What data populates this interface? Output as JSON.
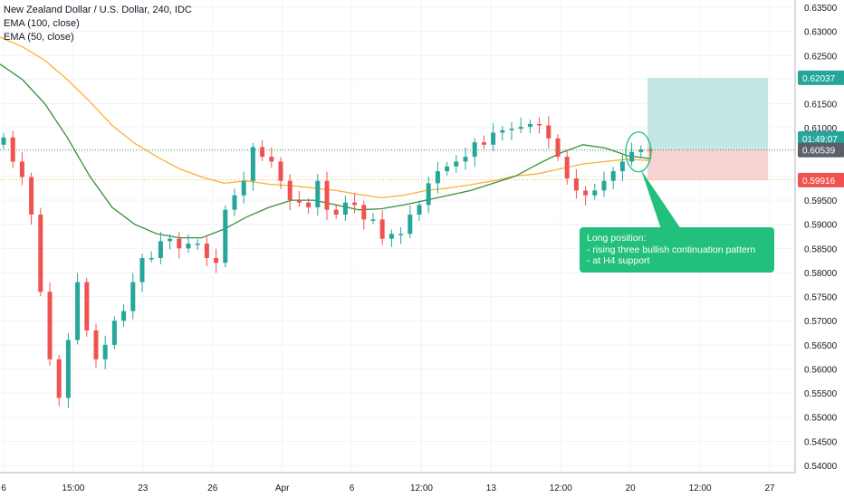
{
  "legend": {
    "symbol": "New Zealand Dollar / U.S. Dollar, 240, IDC",
    "ema100": "EMA (100, close)",
    "ema50": "EMA (50, close)"
  },
  "price_axis": {
    "ticks": [
      "0.63500",
      "0.63000",
      "0.62500",
      "0.62000",
      "0.61500",
      "0.61000",
      "0.60500",
      "0.60000",
      "0.59500",
      "0.59000",
      "0.58500",
      "0.58000",
      "0.57500",
      "0.57000",
      "0.56500",
      "0.56000",
      "0.55500",
      "0.55000",
      "0.54500",
      "0.54000"
    ],
    "badges": [
      {
        "text": "0.62037",
        "price": 0.62037,
        "color": "#26a69a"
      },
      {
        "text": "01:49:07",
        "price": 0.6078,
        "color": "#26a69a"
      },
      {
        "text": "0.60539",
        "price": 0.60539,
        "color": "#5d606b"
      },
      {
        "text": "0.59916",
        "price": 0.59916,
        "color": "#ef5350"
      }
    ]
  },
  "time_axis": {
    "labels": [
      "6",
      "15:00",
      "23",
      "26",
      "Apr",
      "6",
      "12:00",
      "13",
      "12:00",
      "20",
      "12:00",
      "27"
    ]
  },
  "annotation": {
    "lines": [
      "Long position:",
      "- rising three bullish continuation pattern",
      "- at H4 support"
    ]
  },
  "colors": {
    "up": "#26a69a",
    "down": "#ef5350",
    "ema50": "#388e3c",
    "ema100": "#f9b234",
    "profit_zone": "#b2dfdb",
    "loss_zone": "#f8c8c8",
    "annotation": "#22c07c"
  },
  "chart_data": {
    "type": "candlestick",
    "title": "New Zealand Dollar / U.S. Dollar, 240, IDC",
    "ylim": [
      0.5385,
      0.6365
    ],
    "x_tick_labels": [
      "6",
      "15:00",
      "23",
      "26",
      "Apr",
      "6",
      "12:00",
      "13",
      "12:00",
      "20",
      "12:00",
      "27"
    ],
    "series": [
      {
        "name": "EMA (100, close)",
        "values": [
          0.6288,
          0.6268,
          0.624,
          0.62,
          0.6155,
          0.6105,
          0.6068,
          0.604,
          0.6015,
          0.5998,
          0.5985,
          0.599,
          0.5983,
          0.598,
          0.5975,
          0.597,
          0.5962,
          0.5955,
          0.596,
          0.597,
          0.5975,
          0.5982,
          0.599,
          0.6,
          0.6005,
          0.6015,
          0.6025,
          0.603,
          0.6035,
          0.6032
        ]
      },
      {
        "name": "EMA (50, close)",
        "values": [
          0.6232,
          0.62,
          0.615,
          0.608,
          0.6,
          0.5935,
          0.59,
          0.588,
          0.5872,
          0.5872,
          0.589,
          0.5915,
          0.5935,
          0.595,
          0.595,
          0.594,
          0.593,
          0.5932,
          0.594,
          0.595,
          0.596,
          0.597,
          0.5985,
          0.6,
          0.6025,
          0.6048,
          0.6065,
          0.6058,
          0.6042,
          0.6036
        ]
      },
      {
        "name": "candles",
        "close": [
          0.608,
          0.603,
          0.5998,
          0.592,
          0.576,
          0.562,
          0.554,
          0.566,
          0.578,
          0.568,
          0.562,
          0.565,
          0.57,
          0.572,
          0.578,
          0.583,
          0.583,
          0.5865,
          0.587,
          0.585,
          0.586,
          0.586,
          0.583,
          0.582,
          0.593,
          0.596,
          0.599,
          0.606,
          0.604,
          0.603,
          0.599,
          0.595,
          0.5945,
          0.5935,
          0.599,
          0.593,
          0.592,
          0.5945,
          0.594,
          0.591,
          0.591,
          0.587,
          0.588,
          0.588,
          0.592,
          0.594,
          0.5985,
          0.601,
          0.602,
          0.603,
          0.604,
          0.607,
          0.6065,
          0.609,
          0.6095,
          0.6098,
          0.6102,
          0.6108,
          0.6105,
          0.6078,
          0.604,
          0.5995,
          0.597,
          0.596,
          0.597,
          0.599,
          0.601,
          0.603,
          0.605,
          0.6055,
          0.6054
        ]
      }
    ],
    "positions": [
      {
        "type": "long",
        "target": 0.62037,
        "entry": 0.60539,
        "stop": 0.59916
      }
    ]
  }
}
